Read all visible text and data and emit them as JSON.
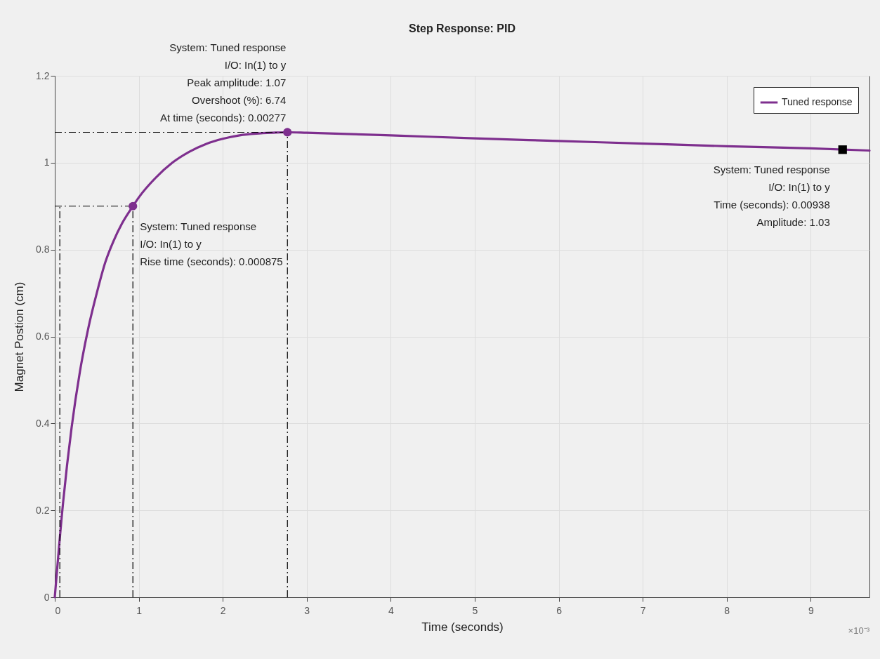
{
  "chart_data": {
    "type": "line",
    "title": "Step Response: PID",
    "xlabel": "Time (seconds)",
    "ylabel": "Magnet Postion (cm)",
    "xlim": [
      0,
      9.7
    ],
    "xticks": [
      0,
      1,
      2,
      3,
      4,
      5,
      6,
      7,
      8,
      9
    ],
    "ylim": [
      0,
      1.2
    ],
    "yticks": [
      0,
      0.2,
      0.4,
      0.6,
      0.8,
      1,
      1.2
    ],
    "grid": true,
    "legend": "top right",
    "series": [
      {
        "name": "Tuned response",
        "color": "#7e2f8e",
        "x": [
          0,
          0.1,
          0.2,
          0.3,
          0.4,
          0.5,
          0.6,
          0.7,
          0.8,
          0.93,
          1.0,
          1.2,
          1.4,
          1.6,
          1.8,
          2.0,
          2.2,
          2.4,
          2.6,
          2.77,
          3,
          4,
          5,
          6,
          7,
          8,
          9,
          9.7
        ],
        "values": [
          0,
          0.22,
          0.39,
          0.52,
          0.62,
          0.7,
          0.77,
          0.82,
          0.86,
          0.9,
          0.92,
          0.965,
          1.0,
          1.025,
          1.043,
          1.055,
          1.063,
          1.067,
          1.069,
          1.07,
          1.069,
          1.063,
          1.056,
          1.05,
          1.044,
          1.038,
          1.033,
          1.028
        ]
      },
      {
        "type": "scatter",
        "color": "#7e2f8e",
        "marker": "circle",
        "x": [
          0.93,
          2.77
        ],
        "values": [
          0.9,
          1.07
        ]
      },
      {
        "type": "scatter",
        "color": "#000000",
        "marker": "square",
        "x": [
          9.38
        ],
        "values": [
          1.03
        ]
      }
    ],
    "ref_lines": [
      {
        "axis": "y",
        "value": 0.9,
        "color": "#000000"
      },
      {
        "axis": "y",
        "value": 1.07,
        "color": "#000000"
      },
      {
        "axis": "x",
        "value": 0.06,
        "color": "#000000"
      },
      {
        "axis": "x",
        "value": 0.93,
        "color": "#000000"
      },
      {
        "axis": "x",
        "value": 2.77,
        "color": "#000000"
      }
    ],
    "annotations": [
      {
        "text": "System: Tuned response\nI/O: In(1) to y\nPeak amplitude: 1.07\nOvershoot (%): 6.74\nAt time (seconds): 0.00277",
        "x": 2.77,
        "y": 1.07
      },
      {
        "text": "System: Tuned response\nI/O: In(1) to y\nRise time (seconds): 0.000875",
        "x": 0.93,
        "y": 0.9
      },
      {
        "text": "System: Tuned response\nI/O: In(1) to y\nTime (seconds): 0.00938\nAmplitude: 1.03",
        "x": 9.38,
        "y": 1.03
      },
      "×10⁻³"
    ]
  }
}
